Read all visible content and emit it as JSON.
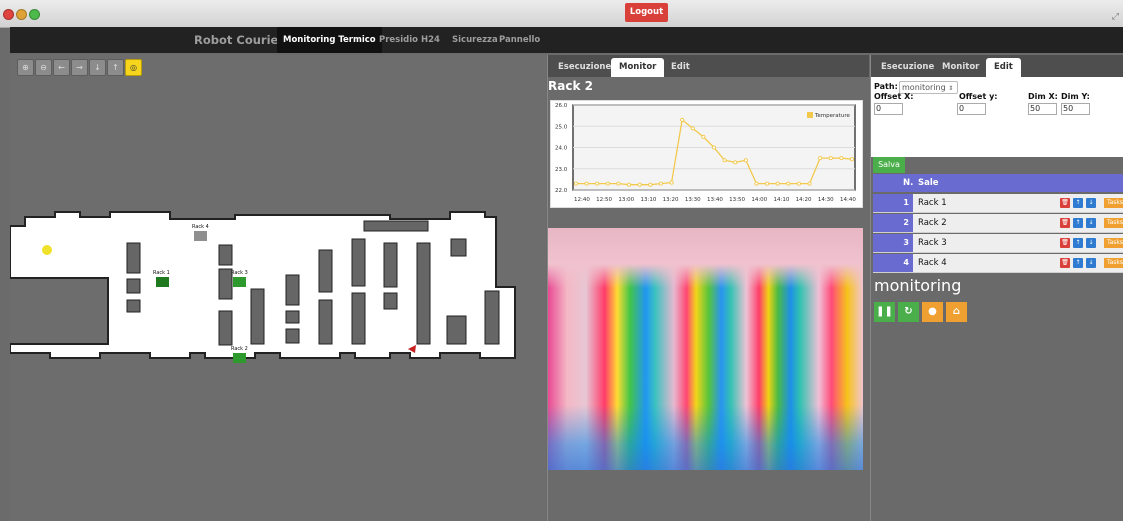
{
  "window": {
    "controls": [
      "close",
      "minimize",
      "zoom"
    ]
  },
  "nav": {
    "brand": "Robot Courier",
    "items": [
      "Monitoring Termico",
      "Presidio H24",
      "Sicurezza",
      "Pannello"
    ],
    "active": "Monitoring Termico",
    "logout": "Logout"
  },
  "map": {
    "tools": [
      "zoom-in-icon",
      "zoom-out-icon",
      "arrow-left-icon",
      "arrow-right-icon",
      "arrow-down-icon",
      "arrow-up-icon",
      "target-icon"
    ],
    "racks": [
      "Rack 4",
      "Rack 1",
      "Rack 3",
      "Rack 2"
    ]
  },
  "middle": {
    "tabs": [
      "Esecuzione",
      "Monitor",
      "Edit"
    ],
    "active_tab": "Monitor",
    "title": "Rack 2"
  },
  "chart_data": {
    "type": "line",
    "title": "",
    "legend": [
      "Temperature"
    ],
    "legend_position": "top-right",
    "ylim": [
      22.0,
      26.0
    ],
    "yticks": [
      "22.0",
      "23.0",
      "24.0",
      "25.0",
      "26.0"
    ],
    "xticks": [
      "12:40",
      "12:50",
      "13:00",
      "13:10",
      "13:20",
      "13:30",
      "13:40",
      "13:50",
      "14:00",
      "14:10",
      "14:20",
      "14:30",
      "14:40"
    ],
    "series": [
      {
        "name": "Temperature",
        "color": "#f2c94c",
        "x": [
          0,
          1,
          2,
          3,
          4,
          5,
          6,
          7,
          8,
          9,
          10,
          11,
          12,
          13,
          14,
          15,
          16,
          17,
          18,
          19,
          20,
          21,
          22,
          23,
          24,
          25,
          26
        ],
        "values": [
          22.3,
          22.3,
          22.3,
          22.3,
          22.3,
          22.25,
          22.25,
          22.25,
          22.3,
          22.35,
          25.3,
          24.9,
          24.5,
          24.0,
          23.4,
          23.3,
          23.4,
          22.3,
          22.3,
          22.3,
          22.3,
          22.3,
          22.3,
          23.5,
          23.5,
          23.5,
          23.45
        ]
      }
    ],
    "grid": true
  },
  "right": {
    "tabs": [
      "Esecuzione",
      "Monitor",
      "Edit"
    ],
    "active_tab": "Edit",
    "path_label": "Path:",
    "path_value": "monitoring",
    "offset_x_label": "Offset X:",
    "offset_y_label": "Offset y:",
    "dimx_label": "Dim X:",
    "dimy_label": "Dim Y:",
    "offset_x": "0",
    "offset_y": "0",
    "dim_x": "50",
    "dim_y": "50",
    "salva": "Salva",
    "table_head": {
      "n": "N.",
      "name": "Sale"
    },
    "rows": [
      {
        "n": "1",
        "name": "Rack 1"
      },
      {
        "n": "2",
        "name": "Rack 2"
      },
      {
        "n": "3",
        "name": "Rack 3"
      },
      {
        "n": "4",
        "name": "Rack 4"
      }
    ],
    "tasks_label": "Tasks",
    "mode": "monitoring"
  }
}
